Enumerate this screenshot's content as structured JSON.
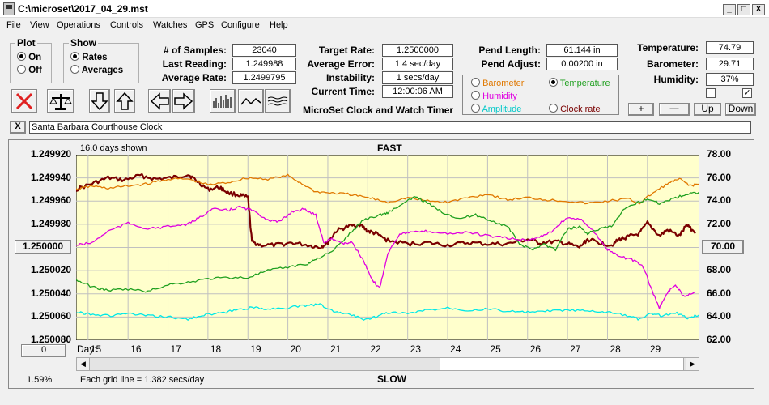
{
  "window": {
    "title": "C:\\microset\\2017_04_29.mst",
    "min": "_",
    "max": "□",
    "close": "X"
  },
  "menu": [
    "File",
    "View",
    "Operations",
    "Controls",
    "Watches",
    "GPS",
    "Configure",
    "Help"
  ],
  "plot_group": {
    "title": "Plot",
    "on": "On",
    "off": "Off",
    "selected": "On"
  },
  "show_group": {
    "title": "Show",
    "rates": "Rates",
    "averages": "Averages",
    "selected": "Rates"
  },
  "fields": {
    "samples_label": "# of Samples:",
    "samples": "23040",
    "last_label": "Last Reading:",
    "last": "1.249988",
    "avg_rate_label": "Average Rate:",
    "avg_rate": "1.2499795",
    "target_label": "Target Rate:",
    "target": "1.2500000",
    "avg_err_label": "Average Error:",
    "avg_err": "1.4 sec/day",
    "instab_label": "Instability:",
    "instab": "1 secs/day",
    "time_label": "Current Time:",
    "time": "12:00:06 AM",
    "pend_len_label": "Pend Length:",
    "pend_len": "61.144 in",
    "pend_adj_label": "Pend Adjust:",
    "pend_adj": "0.00200 in",
    "temp_label": "Temperature:",
    "temp": "74.79",
    "baro_label": "Barometer:",
    "baro": "29.71",
    "hum_label": "Humidity:",
    "hum": "37%"
  },
  "app_caption": "MicroSet Clock and Watch Timer",
  "sensor_options": {
    "barometer": "Barometer",
    "temperature": "Temperature",
    "humidity": "Humidity",
    "amplitude": "Amplitude",
    "clock_rate": "Clock rate",
    "selected": "Temperature"
  },
  "small_buttons": {
    "plus": "+",
    "minus": "—",
    "up": "Up",
    "down": "Down"
  },
  "checkboxes": {
    "left_checked": false,
    "right_checked": true
  },
  "clock_name": "Santa Barbara Courthouse Clock",
  "clear_button": "X",
  "chart_data": {
    "type": "line",
    "days_shown": "16.0 days shown",
    "top_label": "FAST",
    "bottom_label": "SLOW",
    "grid_note": "Each grid line = 1.382 secs/day",
    "percent": "1.59%",
    "left_button": "1.250000",
    "left_bottom_button": "0",
    "right_button": "70.00",
    "x_prefix": "Day:",
    "x_ticks": [
      "15",
      "16",
      "17",
      "18",
      "19",
      "20",
      "21",
      "22",
      "23",
      "24",
      "25",
      "26",
      "27",
      "28",
      "29"
    ],
    "x_range": [
      14.2,
      29.8
    ],
    "left_axis": {
      "ticks": [
        "1.249920",
        "1.249940",
        "1.249960",
        "1.249980",
        "1.250000",
        "1.250020",
        "1.250040",
        "1.250060",
        "1.250080"
      ],
      "range": [
        1.24992,
        1.25008
      ],
      "inverted": true
    },
    "right_axis": {
      "ticks": [
        "78.00",
        "76.00",
        "74.00",
        "72.00",
        "70.00",
        "68.00",
        "66.00",
        "64.00",
        "62.00"
      ],
      "range": [
        62,
        78
      ]
    },
    "background": "#ffffcc",
    "series": [
      {
        "key": "rate",
        "color": "#7a0000",
        "width": 2.2,
        "axis": "left",
        "points": [
          [
            14.2,
            1.24995
          ],
          [
            14.6,
            1.249945
          ],
          [
            15.0,
            1.24994
          ],
          [
            15.4,
            1.249942
          ],
          [
            15.8,
            1.249938
          ],
          [
            16.2,
            1.249941
          ],
          [
            16.6,
            1.24994
          ],
          [
            17.0,
            1.249937
          ],
          [
            17.2,
            1.249942
          ],
          [
            17.5,
            1.24995
          ],
          [
            17.8,
            1.249948
          ],
          [
            18.0,
            1.249953
          ],
          [
            18.3,
            1.249955
          ],
          [
            18.5,
            1.249957
          ],
          [
            18.6,
            1.249995
          ],
          [
            18.8,
            1.249998
          ],
          [
            19.2,
            1.249998
          ],
          [
            19.6,
            1.249996
          ],
          [
            20.0,
            1.249998
          ],
          [
            20.3,
            1.25
          ],
          [
            20.5,
            1.249996
          ],
          [
            20.7,
            1.249986
          ],
          [
            21.0,
            1.249982
          ],
          [
            21.3,
            1.24998
          ],
          [
            21.5,
            1.249986
          ],
          [
            21.7,
            1.249988
          ],
          [
            22.0,
            1.249994
          ],
          [
            22.5,
            1.249997
          ],
          [
            23.0,
            1.249996
          ],
          [
            23.5,
            1.249998
          ],
          [
            24.0,
            1.249996
          ],
          [
            24.5,
            1.249997
          ],
          [
            25.0,
            1.249997
          ],
          [
            25.5,
            1.249993
          ],
          [
            25.8,
            1.249996
          ],
          [
            26.2,
            1.249995
          ],
          [
            26.5,
            1.249997
          ],
          [
            26.8,
            1.25
          ],
          [
            27.0,
            1.249993
          ],
          [
            27.3,
            1.249996
          ],
          [
            27.6,
            1.249998
          ],
          [
            27.8,
            1.249993
          ],
          [
            28.0,
            1.249991
          ],
          [
            28.3,
            1.249988
          ],
          [
            28.5,
            1.249979
          ],
          [
            28.8,
            1.24999
          ],
          [
            29.0,
            1.249985
          ],
          [
            29.3,
            1.24999
          ],
          [
            29.5,
            1.24998
          ],
          [
            29.7,
            1.249988
          ]
        ]
      },
      {
        "key": "temperature",
        "color": "#e07800",
        "width": 1.3,
        "axis": "right",
        "points": [
          [
            14.2,
            75.0
          ],
          [
            14.6,
            75.3
          ],
          [
            15.0,
            75.1
          ],
          [
            15.5,
            75.3
          ],
          [
            16.0,
            75.5
          ],
          [
            16.5,
            75.9
          ],
          [
            17.0,
            75.9
          ],
          [
            17.5,
            75.4
          ],
          [
            18.0,
            75.6
          ],
          [
            18.5,
            76.0
          ],
          [
            19.0,
            75.9
          ],
          [
            19.5,
            76.2
          ],
          [
            19.8,
            75.6
          ],
          [
            20.2,
            74.8
          ],
          [
            20.6,
            74.7
          ],
          [
            21.0,
            74.6
          ],
          [
            21.5,
            74.3
          ],
          [
            22.0,
            73.9
          ],
          [
            22.5,
            74.3
          ],
          [
            23.0,
            74.0
          ],
          [
            23.5,
            73.9
          ],
          [
            24.0,
            74.3
          ],
          [
            24.5,
            74.6
          ],
          [
            25.0,
            74.1
          ],
          [
            25.5,
            74.3
          ],
          [
            26.0,
            74.1
          ],
          [
            26.5,
            74.0
          ],
          [
            27.0,
            73.8
          ],
          [
            27.5,
            74.0
          ],
          [
            28.0,
            74.2
          ],
          [
            28.3,
            73.8
          ],
          [
            28.6,
            74.6
          ],
          [
            29.0,
            75.5
          ],
          [
            29.3,
            75.9
          ],
          [
            29.6,
            75.3
          ],
          [
            29.8,
            75.5
          ]
        ]
      },
      {
        "key": "barometer_line",
        "color": "#20a020",
        "width": 1.3,
        "axis": "right",
        "points": [
          [
            14.2,
            67.2
          ],
          [
            14.6,
            66.6
          ],
          [
            15.0,
            66.3
          ],
          [
            15.5,
            66.4
          ],
          [
            16.0,
            66.2
          ],
          [
            16.5,
            66.8
          ],
          [
            17.0,
            67.0
          ],
          [
            17.5,
            67.3
          ],
          [
            18.0,
            67.4
          ],
          [
            18.5,
            67.4
          ],
          [
            19.0,
            68.0
          ],
          [
            19.5,
            68.3
          ],
          [
            20.0,
            68.6
          ],
          [
            20.2,
            69.0
          ],
          [
            20.6,
            69.6
          ],
          [
            21.0,
            71.0
          ],
          [
            21.4,
            72.4
          ],
          [
            21.8,
            72.8
          ],
          [
            22.0,
            73.0
          ],
          [
            22.4,
            73.8
          ],
          [
            22.7,
            74.4
          ],
          [
            23.0,
            73.8
          ],
          [
            23.4,
            73.0
          ],
          [
            23.8,
            72.5
          ],
          [
            24.2,
            72.8
          ],
          [
            24.6,
            72.3
          ],
          [
            25.0,
            71.8
          ],
          [
            25.3,
            70.3
          ],
          [
            25.6,
            69.8
          ],
          [
            25.9,
            70.3
          ],
          [
            26.2,
            69.8
          ],
          [
            26.5,
            71.6
          ],
          [
            26.8,
            71.8
          ],
          [
            27.0,
            71.2
          ],
          [
            27.3,
            71.6
          ],
          [
            27.6,
            71.8
          ],
          [
            27.9,
            73.2
          ],
          [
            28.2,
            73.8
          ],
          [
            28.5,
            74.2
          ],
          [
            28.8,
            73.8
          ],
          [
            29.2,
            74.3
          ],
          [
            29.5,
            74.6
          ],
          [
            29.8,
            74.8
          ]
        ]
      },
      {
        "key": "humidity",
        "color": "#e000e0",
        "width": 1.3,
        "axis": "right",
        "points": [
          [
            14.2,
            70.2
          ],
          [
            14.6,
            70.4
          ],
          [
            15.0,
            71.4
          ],
          [
            15.5,
            72.1
          ],
          [
            16.0,
            71.6
          ],
          [
            16.5,
            71.8
          ],
          [
            17.0,
            72.0
          ],
          [
            17.3,
            72.6
          ],
          [
            17.6,
            73.3
          ],
          [
            18.0,
            73.2
          ],
          [
            18.3,
            73.5
          ],
          [
            18.6,
            73.2
          ],
          [
            19.0,
            72.4
          ],
          [
            19.3,
            72.2
          ],
          [
            19.6,
            73.1
          ],
          [
            19.9,
            73.3
          ],
          [
            20.2,
            72.8
          ],
          [
            20.4,
            70.4
          ],
          [
            20.6,
            70.8
          ],
          [
            20.9,
            70.3
          ],
          [
            21.1,
            70.5
          ],
          [
            21.4,
            68.8
          ],
          [
            21.6,
            67.2
          ],
          [
            21.8,
            66.5
          ],
          [
            22.0,
            69.5
          ],
          [
            22.3,
            71.2
          ],
          [
            22.6,
            71.3
          ],
          [
            23.0,
            71.4
          ],
          [
            23.5,
            71.2
          ],
          [
            24.0,
            71.3
          ],
          [
            24.5,
            71.0
          ],
          [
            25.0,
            70.8
          ],
          [
            25.5,
            70.6
          ],
          [
            25.8,
            70.9
          ],
          [
            26.1,
            71.4
          ],
          [
            26.5,
            72.6
          ],
          [
            26.9,
            72.3
          ],
          [
            27.2,
            71.2
          ],
          [
            27.5,
            69.8
          ],
          [
            27.8,
            69.2
          ],
          [
            28.1,
            69.0
          ],
          [
            28.4,
            68.3
          ],
          [
            28.6,
            66.4
          ],
          [
            28.8,
            64.8
          ],
          [
            29.0,
            66.1
          ],
          [
            29.2,
            66.8
          ],
          [
            29.4,
            65.8
          ],
          [
            29.7,
            66.2
          ]
        ]
      },
      {
        "key": "amplitude",
        "color": "#00e8e8",
        "width": 1.3,
        "axis": "right",
        "points": [
          [
            14.2,
            64.4
          ],
          [
            14.5,
            64.3
          ],
          [
            15.0,
            64.1
          ],
          [
            15.5,
            64.3
          ],
          [
            16.0,
            64.1
          ],
          [
            16.5,
            64.0
          ],
          [
            17.0,
            63.8
          ],
          [
            17.4,
            64.2
          ],
          [
            17.8,
            64.3
          ],
          [
            18.2,
            64.6
          ],
          [
            18.6,
            64.8
          ],
          [
            19.0,
            64.7
          ],
          [
            19.5,
            64.8
          ],
          [
            20.0,
            65.0
          ],
          [
            20.3,
            65.1
          ],
          [
            20.7,
            64.4
          ],
          [
            21.0,
            64.3
          ],
          [
            21.4,
            63.8
          ],
          [
            21.7,
            64.0
          ],
          [
            22.0,
            64.4
          ],
          [
            22.5,
            64.3
          ],
          [
            23.0,
            64.6
          ],
          [
            23.5,
            64.8
          ],
          [
            24.0,
            64.6
          ],
          [
            24.5,
            64.7
          ],
          [
            25.0,
            64.5
          ],
          [
            25.5,
            64.4
          ],
          [
            26.0,
            64.5
          ],
          [
            26.5,
            64.6
          ],
          [
            27.0,
            64.5
          ],
          [
            27.5,
            64.4
          ],
          [
            28.0,
            64.1
          ],
          [
            28.3,
            63.8
          ],
          [
            28.6,
            64.3
          ],
          [
            28.9,
            64.1
          ],
          [
            29.2,
            64.4
          ],
          [
            29.5,
            63.9
          ],
          [
            29.8,
            64.2
          ]
        ]
      }
    ]
  }
}
